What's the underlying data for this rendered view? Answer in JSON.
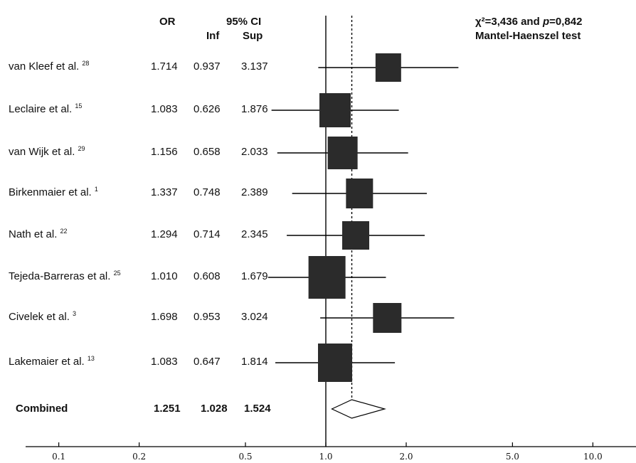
{
  "headers": {
    "or": "OR",
    "ci": "95% CI",
    "inf": "Inf",
    "sup": "Sup"
  },
  "stat": {
    "line1": "χ²=3,436 and p=0,842",
    "line2": "Mantel-Haenszel test"
  },
  "combined_label": "Combined",
  "chart_data": {
    "type": "forest",
    "x_scale": "log",
    "xlim": [
      0.08,
      12
    ],
    "x_ticks": [
      "0.1",
      "0.2",
      "0.5",
      "1.0",
      "2.0",
      "5.0",
      "10.0"
    ],
    "reference_line": 1.0,
    "combined_line": 1.251,
    "studies": [
      {
        "label": "van Kleef et al.",
        "ref": "28",
        "or": "1.714",
        "inf": "0.937",
        "sup": "3.137",
        "or_v": 1.714,
        "inf_v": 0.937,
        "sup_v": 3.137
      },
      {
        "label": "Leclaire et al.",
        "ref": "15",
        "or": "1.083",
        "inf": "0.626",
        "sup": "1.876",
        "or_v": 1.083,
        "inf_v": 0.626,
        "sup_v": 1.876
      },
      {
        "label": "van Wijk et al.",
        "ref": "29",
        "or": "1.156",
        "inf": "0.658",
        "sup": "2.033",
        "or_v": 1.156,
        "inf_v": 0.658,
        "sup_v": 2.033
      },
      {
        "label": "Birkenmaier et al.",
        "ref": "1",
        "or": "1.337",
        "inf": "0.748",
        "sup": "2.389",
        "or_v": 1.337,
        "inf_v": 0.748,
        "sup_v": 2.389
      },
      {
        "label": "Nath et al.",
        "ref": "22",
        "or": "1.294",
        "inf": "0.714",
        "sup": "2.345",
        "or_v": 1.294,
        "inf_v": 0.714,
        "sup_v": 2.345
      },
      {
        "label": "Tejeda-Barreras et al.",
        "ref": "25",
        "or": "1.010",
        "inf": "0.608",
        "sup": "1.679",
        "or_v": 1.01,
        "inf_v": 0.608,
        "sup_v": 1.679
      },
      {
        "label": "Civelek et al.",
        "ref": "3",
        "or": "1.698",
        "inf": "0.953",
        "sup": "3.024",
        "or_v": 1.698,
        "inf_v": 0.953,
        "sup_v": 3.024
      },
      {
        "label": "Lakemaier et al.",
        "ref": "13",
        "or": "1.083",
        "inf": "0.647",
        "sup": "1.814",
        "or_v": 1.083,
        "inf_v": 0.647,
        "sup_v": 1.814
      }
    ],
    "combined": {
      "or": "1.251",
      "inf": "1.028",
      "sup": "1.524",
      "or_v": 1.251,
      "inf_v": 1.028,
      "sup_v": 1.524
    }
  }
}
